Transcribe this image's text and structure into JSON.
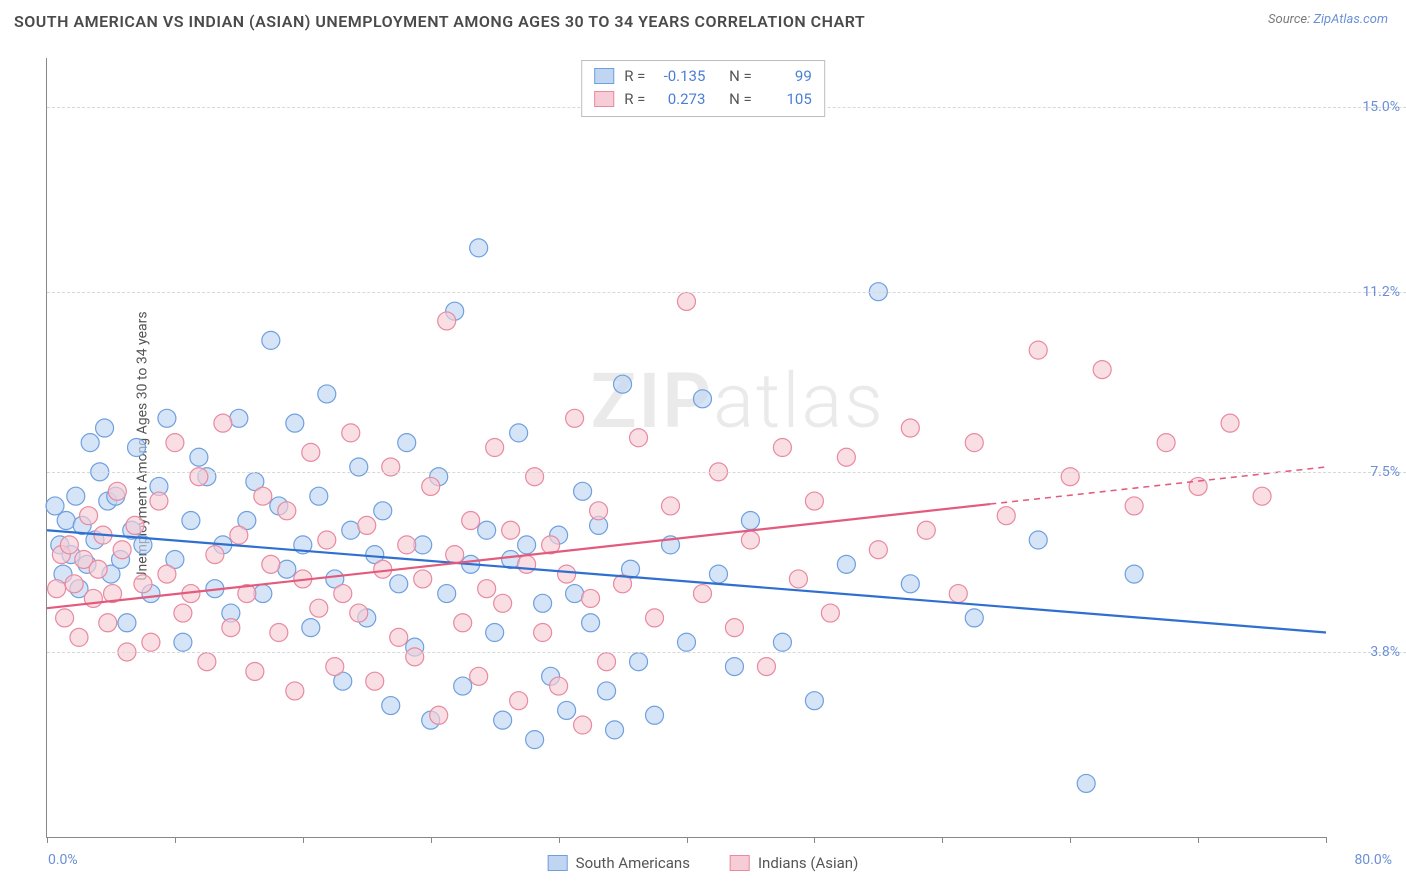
{
  "header": {
    "title": "SOUTH AMERICAN VS INDIAN (ASIAN) UNEMPLOYMENT AMONG AGES 30 TO 34 YEARS CORRELATION CHART",
    "source_prefix": "Source: ",
    "source_link": "ZipAtlas.com"
  },
  "chart": {
    "type": "scatter-correlation",
    "ylabel": "Unemployment Among Ages 30 to 34 years",
    "xlim": [
      0,
      80
    ],
    "ylim": [
      0,
      16
    ],
    "x_min_label": "0.0%",
    "x_max_label": "80.0%",
    "y_gridlines": [
      3.8,
      7.5,
      11.2,
      15.0
    ],
    "y_grid_labels": [
      "3.8%",
      "7.5%",
      "11.2%",
      "15.0%"
    ],
    "x_ticks": [
      0,
      8,
      16,
      24,
      32,
      40,
      48,
      56,
      64,
      72,
      80
    ],
    "grid_color": "#d8d8d8",
    "axis_color": "#888888",
    "background_color": "#ffffff",
    "ytick_label_color": "#6b8fd4",
    "marker_radius": 9,
    "marker_stroke_width": 1.2,
    "line_width": 2.2,
    "series": [
      {
        "name": "South Americans",
        "fill": "#bfd5f2",
        "stroke": "#6fa0de",
        "line_color": "#2f6fd0",
        "R": "-0.135",
        "N": "99",
        "trend": {
          "x1": 0,
          "y1": 6.3,
          "x2": 80,
          "y2": 4.2,
          "solid_until_x": 80
        },
        "points": [
          [
            0.5,
            6.8
          ],
          [
            0.8,
            6.0
          ],
          [
            1.0,
            5.4
          ],
          [
            1.2,
            6.5
          ],
          [
            1.5,
            5.8
          ],
          [
            1.8,
            7.0
          ],
          [
            2.0,
            5.1
          ],
          [
            2.2,
            6.4
          ],
          [
            2.5,
            5.6
          ],
          [
            2.7,
            8.1
          ],
          [
            3.0,
            6.1
          ],
          [
            3.3,
            7.5
          ],
          [
            3.6,
            8.4
          ],
          [
            3.8,
            6.9
          ],
          [
            4.0,
            5.4
          ],
          [
            4.3,
            7.0
          ],
          [
            4.6,
            5.7
          ],
          [
            5.0,
            4.4
          ],
          [
            5.3,
            6.3
          ],
          [
            5.6,
            8.0
          ],
          [
            6.0,
            6.0
          ],
          [
            6.5,
            5.0
          ],
          [
            7.0,
            7.2
          ],
          [
            7.5,
            8.6
          ],
          [
            8.0,
            5.7
          ],
          [
            8.5,
            4.0
          ],
          [
            9.0,
            6.5
          ],
          [
            9.5,
            7.8
          ],
          [
            10.0,
            7.4
          ],
          [
            10.5,
            5.1
          ],
          [
            11.0,
            6.0
          ],
          [
            11.5,
            4.6
          ],
          [
            12.0,
            8.6
          ],
          [
            12.5,
            6.5
          ],
          [
            13.0,
            7.3
          ],
          [
            13.5,
            5.0
          ],
          [
            14.0,
            10.2
          ],
          [
            14.5,
            6.8
          ],
          [
            15.0,
            5.5
          ],
          [
            15.5,
            8.5
          ],
          [
            16.0,
            6.0
          ],
          [
            16.5,
            4.3
          ],
          [
            17.0,
            7.0
          ],
          [
            17.5,
            9.1
          ],
          [
            18.0,
            5.3
          ],
          [
            18.5,
            3.2
          ],
          [
            19.0,
            6.3
          ],
          [
            19.5,
            7.6
          ],
          [
            20.0,
            4.5
          ],
          [
            20.5,
            5.8
          ],
          [
            21.0,
            6.7
          ],
          [
            21.5,
            2.7
          ],
          [
            22.0,
            5.2
          ],
          [
            22.5,
            8.1
          ],
          [
            23.0,
            3.9
          ],
          [
            23.5,
            6.0
          ],
          [
            24.0,
            2.4
          ],
          [
            24.5,
            7.4
          ],
          [
            25.0,
            5.0
          ],
          [
            25.5,
            10.8
          ],
          [
            26.0,
            3.1
          ],
          [
            26.5,
            5.6
          ],
          [
            27.0,
            12.1
          ],
          [
            27.5,
            6.3
          ],
          [
            28.0,
            4.2
          ],
          [
            28.5,
            2.4
          ],
          [
            29.0,
            5.7
          ],
          [
            29.5,
            8.3
          ],
          [
            30.0,
            6.0
          ],
          [
            30.5,
            2.0
          ],
          [
            31.0,
            4.8
          ],
          [
            31.5,
            3.3
          ],
          [
            32.0,
            6.2
          ],
          [
            32.5,
            2.6
          ],
          [
            33.0,
            5.0
          ],
          [
            33.5,
            7.1
          ],
          [
            34.0,
            4.4
          ],
          [
            34.5,
            6.4
          ],
          [
            35.0,
            3.0
          ],
          [
            35.5,
            2.2
          ],
          [
            36.0,
            9.3
          ],
          [
            36.5,
            5.5
          ],
          [
            37.0,
            3.6
          ],
          [
            38.0,
            2.5
          ],
          [
            39.0,
            6.0
          ],
          [
            40.0,
            4.0
          ],
          [
            41.0,
            9.0
          ],
          [
            42.0,
            5.4
          ],
          [
            43.0,
            3.5
          ],
          [
            44.0,
            6.5
          ],
          [
            46.0,
            4.0
          ],
          [
            48.0,
            2.8
          ],
          [
            50.0,
            5.6
          ],
          [
            52.0,
            11.2
          ],
          [
            54.0,
            5.2
          ],
          [
            58.0,
            4.5
          ],
          [
            62.0,
            6.1
          ],
          [
            65.0,
            1.1
          ],
          [
            68.0,
            5.4
          ]
        ]
      },
      {
        "name": "Indians (Asian)",
        "fill": "#f6cdd6",
        "stroke": "#e88aa0",
        "line_color": "#e25b7c",
        "R": "0.273",
        "N": "105",
        "trend": {
          "x1": 0,
          "y1": 4.7,
          "x2": 80,
          "y2": 7.6,
          "solid_until_x": 59
        },
        "points": [
          [
            0.6,
            5.1
          ],
          [
            0.9,
            5.8
          ],
          [
            1.1,
            4.5
          ],
          [
            1.4,
            6.0
          ],
          [
            1.7,
            5.2
          ],
          [
            2.0,
            4.1
          ],
          [
            2.3,
            5.7
          ],
          [
            2.6,
            6.6
          ],
          [
            2.9,
            4.9
          ],
          [
            3.2,
            5.5
          ],
          [
            3.5,
            6.2
          ],
          [
            3.8,
            4.4
          ],
          [
            4.1,
            5.0
          ],
          [
            4.4,
            7.1
          ],
          [
            4.7,
            5.9
          ],
          [
            5.0,
            3.8
          ],
          [
            5.5,
            6.4
          ],
          [
            6.0,
            5.2
          ],
          [
            6.5,
            4.0
          ],
          [
            7.0,
            6.9
          ],
          [
            7.5,
            5.4
          ],
          [
            8.0,
            8.1
          ],
          [
            8.5,
            4.6
          ],
          [
            9.0,
            5.0
          ],
          [
            9.5,
            7.4
          ],
          [
            10.0,
            3.6
          ],
          [
            10.5,
            5.8
          ],
          [
            11.0,
            8.5
          ],
          [
            11.5,
            4.3
          ],
          [
            12.0,
            6.2
          ],
          [
            12.5,
            5.0
          ],
          [
            13.0,
            3.4
          ],
          [
            13.5,
            7.0
          ],
          [
            14.0,
            5.6
          ],
          [
            14.5,
            4.2
          ],
          [
            15.0,
            6.7
          ],
          [
            15.5,
            3.0
          ],
          [
            16.0,
            5.3
          ],
          [
            16.5,
            7.9
          ],
          [
            17.0,
            4.7
          ],
          [
            17.5,
            6.1
          ],
          [
            18.0,
            3.5
          ],
          [
            18.5,
            5.0
          ],
          [
            19.0,
            8.3
          ],
          [
            19.5,
            4.6
          ],
          [
            20.0,
            6.4
          ],
          [
            20.5,
            3.2
          ],
          [
            21.0,
            5.5
          ],
          [
            21.5,
            7.6
          ],
          [
            22.0,
            4.1
          ],
          [
            22.5,
            6.0
          ],
          [
            23.0,
            3.7
          ],
          [
            23.5,
            5.3
          ],
          [
            24.0,
            7.2
          ],
          [
            24.5,
            2.5
          ],
          [
            25.0,
            10.6
          ],
          [
            25.5,
            5.8
          ],
          [
            26.0,
            4.4
          ],
          [
            26.5,
            6.5
          ],
          [
            27.0,
            3.3
          ],
          [
            27.5,
            5.1
          ],
          [
            28.0,
            8.0
          ],
          [
            28.5,
            4.8
          ],
          [
            29.0,
            6.3
          ],
          [
            29.5,
            2.8
          ],
          [
            30.0,
            5.6
          ],
          [
            30.5,
            7.4
          ],
          [
            31.0,
            4.2
          ],
          [
            31.5,
            6.0
          ],
          [
            32.0,
            3.1
          ],
          [
            32.5,
            5.4
          ],
          [
            33.0,
            8.6
          ],
          [
            33.5,
            2.3
          ],
          [
            34.0,
            4.9
          ],
          [
            34.5,
            6.7
          ],
          [
            35.0,
            3.6
          ],
          [
            36.0,
            5.2
          ],
          [
            37.0,
            8.2
          ],
          [
            38.0,
            4.5
          ],
          [
            39.0,
            6.8
          ],
          [
            40.0,
            11.0
          ],
          [
            41.0,
            5.0
          ],
          [
            42.0,
            7.5
          ],
          [
            43.0,
            4.3
          ],
          [
            44.0,
            6.1
          ],
          [
            45.0,
            3.5
          ],
          [
            46.0,
            8.0
          ],
          [
            47.0,
            5.3
          ],
          [
            48.0,
            6.9
          ],
          [
            49.0,
            4.6
          ],
          [
            50.0,
            7.8
          ],
          [
            52.0,
            5.9
          ],
          [
            54.0,
            8.4
          ],
          [
            55.0,
            6.3
          ],
          [
            57.0,
            5.0
          ],
          [
            58.0,
            8.1
          ],
          [
            60.0,
            6.6
          ],
          [
            62.0,
            10.0
          ],
          [
            64.0,
            7.4
          ],
          [
            66.0,
            9.6
          ],
          [
            68.0,
            6.8
          ],
          [
            70.0,
            8.1
          ],
          [
            72.0,
            7.2
          ],
          [
            74.0,
            8.5
          ],
          [
            76.0,
            7.0
          ]
        ]
      }
    ]
  },
  "stats_box": {
    "R_label": "R =",
    "N_label": "N ="
  },
  "legend": {
    "items": [
      "South Americans",
      "Indians (Asian)"
    ]
  },
  "watermark": {
    "zip": "ZIP",
    "atlas": "atlas"
  }
}
